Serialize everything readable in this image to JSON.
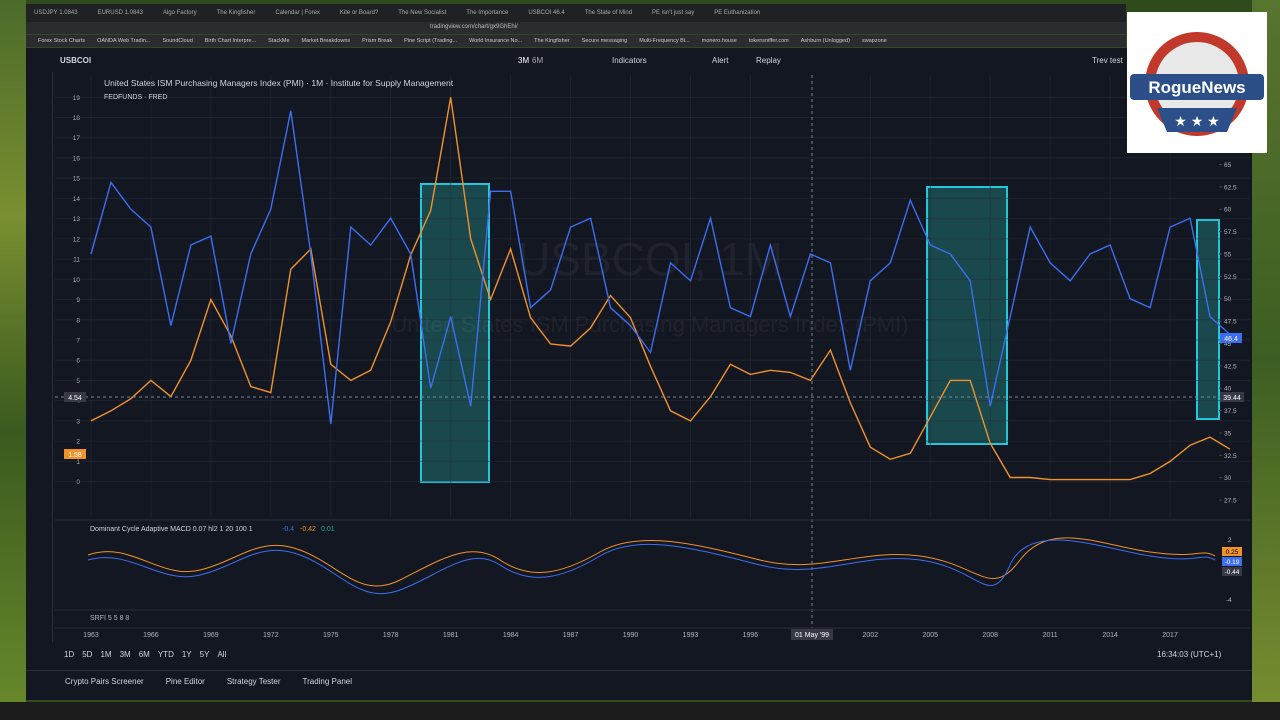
{
  "browser": {
    "tabs": [
      "USDJPY 1.0843",
      "EURUSD 1.0843",
      "Algo Factory",
      "The Kingfisher",
      "Calendar | Forex",
      "Kite or Board?",
      "The New Socialist",
      "The Importance",
      "USBCOI 46.4",
      "The State of Mind",
      "PE isn't just say",
      "PE Euthanization"
    ],
    "url": "tradingview.com/chart/gx9GhEhi/",
    "bookmarks": [
      "Forex Stock Charts",
      "OANDA Web Tradin...",
      "SoundCloud",
      "Birth Chart Interpre...",
      "StackMe",
      "Market Breakdowns",
      "Prism Break",
      "Pine Script (Trading...",
      "World Insurance No...",
      "The Kingfisher",
      "Secure messaging",
      "Multi-Frequency Bl...",
      "monero.house",
      "tokensniffer.com",
      "Ashburn (Unlogged)",
      "swapzone"
    ]
  },
  "toolbar": {
    "symbol": "USBCOI",
    "interval_a": "3M",
    "interval_b": "6M",
    "indicators": "Indicators",
    "alert": "Alert",
    "replay": "Replay",
    "layout": "Trev test"
  },
  "legend": {
    "main": "United States ISM Purchasing Managers Index (PMI) · 1M · Institute for Supply Management",
    "second": "FEDFUNDS · FRED"
  },
  "watermark": {
    "symbol": "USBCOI, 1M",
    "name": "United States ISM Purchasing Managers Index (PMI)"
  },
  "indicator": {
    "name": "Dominant Cycle Adaptive MACD 0.07 hl2 1 20 100 1",
    "v1": "-0.4",
    "v2": "-0.42",
    "v3": "0.01",
    "badges": [
      "0.25",
      "-0.19",
      "-0.44"
    ],
    "scale_top": "2",
    "scale_bottom": "-4"
  },
  "srfi": "SRFI 5 5 8 8",
  "scale_badges": {
    "left_cross": "4.54",
    "left_last": "1.58",
    "right_last": "46.4",
    "right_cross": "39.44"
  },
  "crosshair_label": "01 May '99",
  "chart_data": {
    "type": "line",
    "x": [
      1963,
      1964,
      1965,
      1966,
      1967,
      1968,
      1969,
      1970,
      1971,
      1972,
      1973,
      1974,
      1975,
      1976,
      1977,
      1978,
      1979,
      1980,
      1981,
      1982,
      1983,
      1984,
      1985,
      1986,
      1987,
      1988,
      1989,
      1990,
      1991,
      1992,
      1993,
      1994,
      1995,
      1996,
      1997,
      1998,
      1999,
      2000,
      2001,
      2002,
      2003,
      2004,
      2005,
      2006,
      2007,
      2008,
      2009,
      2010,
      2011,
      2012,
      2013,
      2014,
      2015,
      2016,
      2017,
      2018,
      2019,
      2020
    ],
    "series": [
      {
        "name": "FEDFUNDS",
        "color": "#f0922b",
        "values": [
          3.0,
          3.5,
          4.1,
          5.0,
          4.2,
          6.0,
          9.0,
          7.2,
          4.7,
          4.4,
          10.5,
          11.5,
          5.8,
          5.0,
          5.5,
          7.9,
          11.2,
          13.4,
          19.0,
          12.0,
          9.0,
          11.5,
          8.1,
          6.8,
          6.7,
          7.6,
          9.2,
          8.1,
          5.7,
          3.5,
          3.0,
          4.2,
          5.8,
          5.3,
          5.5,
          5.4,
          5.0,
          6.5,
          3.9,
          1.7,
          1.1,
          1.4,
          3.2,
          5.0,
          5.0,
          1.9,
          0.2,
          0.2,
          0.1,
          0.1,
          0.1,
          0.1,
          0.1,
          0.4,
          1.0,
          1.8,
          2.2,
          1.6
        ]
      },
      {
        "name": "USBCOI",
        "color": "#3d6ef0",
        "axis": "y2",
        "values": [
          55,
          63,
          60,
          58,
          47,
          56,
          57,
          45,
          55,
          60,
          71,
          55,
          36,
          58,
          56,
          59,
          55,
          40,
          48,
          38,
          62,
          62,
          49,
          51,
          58,
          59,
          49,
          47,
          44,
          54,
          52,
          59,
          49,
          48,
          56,
          48,
          55,
          54,
          42,
          52,
          54,
          61,
          56,
          55,
          52,
          38,
          48,
          58,
          54,
          52,
          55,
          56,
          50,
          49,
          58,
          59,
          48,
          46
        ]
      }
    ],
    "xlim": [
      1961.2,
      2021
    ],
    "xticks": [
      1963,
      1966,
      1969,
      1972,
      1975,
      1978,
      1981,
      1984,
      1987,
      1990,
      1993,
      1996,
      2002,
      2005,
      2008,
      2011,
      2014,
      2017
    ],
    "ylim": [
      -1.8,
      20.1
    ],
    "yticks": [
      0,
      1,
      2,
      3,
      4,
      5,
      6,
      7,
      8,
      9,
      10,
      11,
      12,
      13,
      14,
      15,
      16,
      17,
      18,
      19
    ],
    "y2lim": [
      25.5,
      75
    ],
    "y2ticks": [
      27.5,
      30,
      32.5,
      35,
      37.5,
      40,
      42.5,
      45,
      47.5,
      50,
      52.5,
      55,
      57.5,
      60,
      62.5,
      65,
      67.5
    ],
    "grid": true
  },
  "timeframes": [
    "1D",
    "5D",
    "1M",
    "3M",
    "6M",
    "YTD",
    "1Y",
    "5Y",
    "All"
  ],
  "clock": "16:34:03 (UTC+1)",
  "bottom_tabs": [
    "Crypto Pairs Screener",
    "Pine Editor",
    "Strategy Tester",
    "Trading Panel"
  ],
  "logo": "RogueNews"
}
